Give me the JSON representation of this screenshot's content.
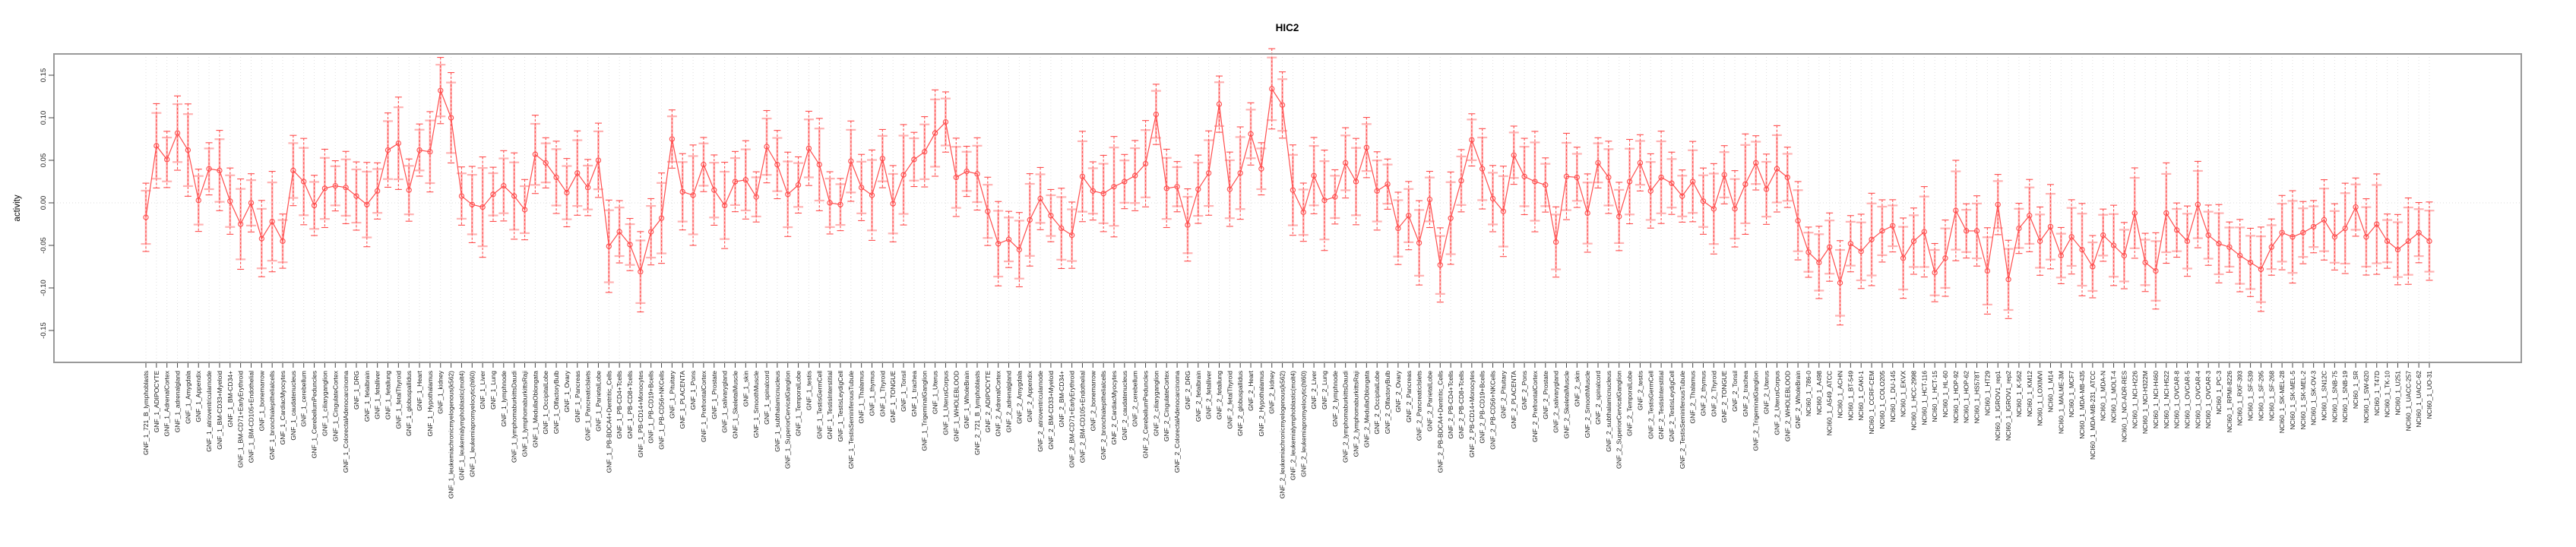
{
  "title": "HIC2",
  "y_axis": {
    "label": "activity",
    "tick_labels": [
      "0.15",
      "0.10",
      "0.05",
      "0.00",
      "-0.05",
      "-0.10",
      "-0.15"
    ],
    "tick_values": [
      0.15,
      0.1,
      0.05,
      0.0,
      -0.05,
      -0.1,
      -0.15
    ]
  },
  "colors": {
    "series_red": "#ff4d4d",
    "outer_band_pink": "#ffb3b3",
    "grid": "#e0e0e0",
    "zero_line": "#e4e4e4",
    "box": "#999999",
    "tick": "#444444",
    "label_text": "#1a1a1a"
  },
  "chart_data": {
    "type": "line",
    "subtype": "means-with-error-bars",
    "title": "HIC2",
    "xlabel": "",
    "ylabel": "activity",
    "ylim": [
      -0.19,
      0.175
    ],
    "yticks": [
      0.15,
      0.1,
      0.05,
      0.0,
      -0.05,
      -0.1,
      -0.15
    ],
    "grid": "vertical-dotted-per-category, dotted-zero-line",
    "legend_position": "none",
    "marker": "open-circle",
    "categories": [
      "GNF_1_721_B_lymphoblasts",
      "GNF_1_ADIPOCYTE",
      "GNF_1_AdrenalCortex",
      "GNF_1_adrenalgland",
      "GNF_1_Amygdala",
      "GNF_1_Appendix",
      "GNF_1_atrioventricularnode",
      "GNF_1_BM-CD33+Myeloid",
      "GNF_1_BM-CD34+",
      "GNF_1_BM-CD71+EarlyErythroid",
      "GNF_1_BM-CD105+Endothelial",
      "GNF_1_bonemarrow",
      "GNF_1_bronchialepithelialcells",
      "GNF_1_CardiacMyocytes",
      "GNF_1_caudatenucleus",
      "GNF_1_cerebellum",
      "GNF_1_CerebellumPeduncles",
      "GNF_1_ciliaryganglion",
      "GNF_1_CingulateCortex",
      "GNF_1_ColorectalAdenocarcinoma",
      "GNF_1_DRG",
      "GNF_1_fetalbrain",
      "GNF_1_fetalliver",
      "GNF_1_fetallung",
      "GNF_1_fetalThyroid",
      "GNF_1_globuspallidus",
      "GNF_1_Heart",
      "GNF_1_Hypothalamus",
      "GNF_1_kidney",
      "GNF_1_leukemiachronicmyelogenous(k562)",
      "GNF_1_leukemialymphoblastic(molt4)",
      "GNF_1_leukemiapromyelocytic(hl60)",
      "GNF_1_Liver",
      "GNF_1_Lung",
      "GNF_1_lymphnode",
      "GNF_1_lymphomaburkittsDaudi",
      "GNF_1_lymphomaburkittsRaji",
      "GNF_1_MedullaOblongata",
      "GNF_1_OccipitalLobe",
      "GNF_1_OlfactoryBulb",
      "GNF_1_Ovary",
      "GNF_1_Pancreas",
      "GNF_1_PancreaticIslets",
      "GNF_1_ParietalLobe",
      "GNF_1_PB-BDCA4+Dentritic_Cells",
      "GNF_1_PB-CD4+Tcells",
      "GNF_1_PB-CD8+Tcells",
      "GNF_1_PB-CD14+Monocytes",
      "GNF_1_PB-CD19+Bcells",
      "GNF_1_PB-CD56+NKCells",
      "GNF_1_Pituitary",
      "GNF_1_PLACENTA",
      "GNF_1_Pons",
      "GNF_1_PrefrontalCortex",
      "GNF_1_Prostate",
      "GNF_1_salivarygland",
      "GNF_1_SkeletalMuscle",
      "GNF_1_skin",
      "GNF_1_SmoothMuscle",
      "GNF_1_spinalcord",
      "GNF_1_subthalamicnucleus",
      "GNF_1_SuperiorCervicalGanglion",
      "GNF_1_TemporalLobe",
      "GNF_1_testis",
      "GNF_1_TestisGermCell",
      "GNF_1_TestisInterstitial",
      "GNF_1_TestisLeydigCell",
      "GNF_1_TestisSeminiferousTubule",
      "GNF_1_Thalamus",
      "GNF_1_thymus",
      "GNF_1_Thyroid",
      "GNF_1_TONGUE",
      "GNF_1_Tonsil",
      "GNF_1_trachea",
      "GNF_1_TrigeminalGanglion",
      "GNF_1_Uterus",
      "GNF_1_UterusCorpus",
      "GNF_1_WHOLEBLOOD",
      "GNF_1_WholeBrain",
      "GNF_2_721_B_lymphoblasts",
      "GNF_2_ADIPOCYTE",
      "GNF_2_AdrenalCortex",
      "GNF_2_adrenalgland",
      "GNF_2_Amygdala",
      "GNF_2_Appendix",
      "GNF_2_atrioventricularnode",
      "GNF_2_BM-CD33+Myeloid",
      "GNF_2_BM-CD34+",
      "GNF_2_BM-CD71+EarlyErythroid",
      "GNF_2_BM-CD105+Endothelial",
      "GNF_2_bonemarrow",
      "GNF_2_bronchialepithelialcells",
      "GNF_2_CardiacMyocytes",
      "GNF_2_caudatenucleus",
      "GNF_2_cerebellum",
      "GNF_2_CerebellumPeduncles",
      "GNF_2_ciliaryganglion",
      "GNF_2_CingulateCortex",
      "GNF_2_ColorectalAdenocarcinoma",
      "GNF_2_DRG",
      "GNF_2_fetalbrain",
      "GNF_2_fetalliver",
      "GNF_2_fetallung",
      "GNF_2_fetalThyroid",
      "GNF_2_globuspallidus",
      "GNF_2_Heart",
      "GNF_2_Hypothalamus",
      "GNF_2_kidney",
      "GNF_2_leukemiachronicmyelogenous(k562)",
      "GNF_2_leukemialymphoblastic(molt4)",
      "GNF_2_leukemiapromyelocytic(hl60)",
      "GNF_2_Liver",
      "GNF_2_Lung",
      "GNF_2_lymphnode",
      "GNF_2_lymphomaburkittsDaudi",
      "GNF_2_lymphomaburkittsRaji",
      "GNF_2_MedullaOblongata",
      "GNF_2_OccipitalLobe",
      "GNF_2_OlfactoryBulb",
      "GNF_2_Ovary",
      "GNF_2_Pancreas",
      "GNF_2_PancreaticIslets",
      "GNF_2_ParietalLobe",
      "GNF_2_PB-BDCA4+Dentritic_Cells",
      "GNF_2_PB-CD4+Tcells",
      "GNF_2_PB-CD8+Tcells",
      "GNF_2_PB-CD14+Monocytes",
      "GNF_2_PB-CD19+Bcells",
      "GNF_2_PB-CD56+NKCells",
      "GNF_2_Pituitary",
      "GNF_2_PLACENTA",
      "GNF_2_Pons",
      "GNF_2_PrefrontalCortex",
      "GNF_2_Prostate",
      "GNF_2_salivarygland",
      "GNF_2_SkeletalMuscle",
      "GNF_2_skin",
      "GNF_2_SmoothMuscle",
      "GNF_2_spinalcord",
      "GNF_2_subthalamicnucleus",
      "GNF_2_SuperiorCervicalGanglion",
      "GNF_2_TemporalLobe",
      "GNF_2_testis",
      "GNF_2_TestisGermCell",
      "GNF_2_TestisInterstitial",
      "GNF_2_TestisLeydigCell",
      "GNF_2_TestisSeminiferousTubule",
      "GNF_2_Thalamus",
      "GNF_2_thymus",
      "GNF_2_Thyroid",
      "GNF_2_TONGUE",
      "GNF_2_Tonsil",
      "GNF_2_trachea",
      "GNF_2_TrigeminalGanglion",
      "GNF_2_Uterus",
      "GNF_2_UterusCorpus",
      "GNF_2_WHOLEBLOOD",
      "GNF_2_WholeBrain",
      "NCI60_1_786-0",
      "NCI60_1_A498",
      "NCI60_1_A549_ATCC",
      "NCI60_1_ACHN",
      "NCI60_1_BT-549",
      "NCI60_1_CAKI-1",
      "NCI60_1_CCRF-CEM",
      "NCI60_1_COLO205",
      "NCI60_1_DU-145",
      "NCI60_1_EKVX",
      "NCI60_1_HCC-2998",
      "NCI60_1_HCT-116",
      "NCI60_1_HCT-15",
      "NCI60_1_HL-60",
      "NCI60_1_HOP-92",
      "NCI60_1_HOP-62",
      "NCI60_1_HS578T",
      "NCI60_1_HT29",
      "NCI60_1_IGROV1_rep1",
      "NCI60_1_IGROV1_rep2",
      "NCI60_1_K-562",
      "NCI60_1_KM12",
      "NCI60_1_LOXIMVI",
      "NCI60_1_M14",
      "NCI60_1_MALME-3M",
      "NCI60_1_MCF7",
      "NCI60_1_MDA-MB-435",
      "NCI60_1_MDA-MB-231_ATCC",
      "NCI60_1_MDA-N",
      "NCI60_1_MOLT-4",
      "NCI60_1_NCI-ADR-RES",
      "NCI60_1_NCI-H226",
      "NCI60_1_NCI-H322M",
      "NCI60_1_NCI-H460",
      "NCI60_1_NCI-H522",
      "NCI60_1_OVCAR-8",
      "NCI60_1_OVCAR-5",
      "NCI60_1_OVCAR-4",
      "NCI60_1_OVCAR-3",
      "NCI60_1_PC-3",
      "NCI60_1_RPMI-8226",
      "NCI60_1_RXF-393",
      "NCI60_1_SF-539",
      "NCI60_1_SF-295",
      "NCI60_1_SF-268",
      "NCI60_1_SK-MEL-28",
      "NCI60_1_SK-MEL-5",
      "NCI60_1_SK-MEL-2",
      "NCI60_1_SK-OV-3",
      "NCI60_1_SN12C",
      "NCI60_1_SNB-75",
      "NCI60_1_SNB-19",
      "NCI60_1_SR",
      "NCI60_1_SW-620",
      "NCI60_1_T47D",
      "NCI60_1_TK-10",
      "NCI60_1_U251",
      "NCI60_1_UACC-257",
      "NCI60_1_UACC-62",
      "NCI60_1_UO-31"
    ],
    "values": [
      -0.017,
      0.067,
      0.051,
      0.082,
      0.062,
      0.003,
      0.04,
      0.038,
      0.002,
      -0.025,
      0.0,
      -0.042,
      -0.022,
      -0.045,
      0.038,
      0.025,
      -0.003,
      0.017,
      0.02,
      0.018,
      0.008,
      -0.002,
      0.014,
      0.062,
      0.07,
      0.015,
      0.062,
      0.06,
      0.132,
      0.1,
      0.008,
      -0.002,
      -0.005,
      0.01,
      0.02,
      0.008,
      -0.008,
      0.057,
      0.047,
      0.03,
      0.012,
      0.035,
      0.018,
      0.05,
      -0.051,
      -0.034,
      -0.049,
      -0.081,
      -0.034,
      -0.018,
      0.075,
      0.013,
      0.009,
      0.045,
      0.015,
      -0.003,
      0.025,
      0.027,
      0.007,
      0.066,
      0.045,
      0.01,
      0.021,
      0.064,
      0.045,
      0.0,
      -0.002,
      0.049,
      0.018,
      0.009,
      0.052,
      -0.001,
      0.033,
      0.051,
      0.06,
      0.082,
      0.095,
      0.03,
      0.037,
      0.034,
      -0.01,
      -0.048,
      -0.043,
      -0.055,
      -0.02,
      0.005,
      -0.015,
      -0.03,
      -0.038,
      0.031,
      0.014,
      0.011,
      0.019,
      0.025,
      0.032,
      0.046,
      0.104,
      0.017,
      0.019,
      -0.026,
      0.016,
      0.035,
      0.116,
      0.016,
      0.035,
      0.081,
      0.04,
      0.134,
      0.115,
      0.015,
      -0.011,
      0.032,
      0.003,
      0.007,
      0.047,
      0.025,
      0.065,
      0.014,
      0.022,
      -0.03,
      -0.015,
      -0.047,
      0.004,
      -0.073,
      -0.018,
      0.026,
      0.074,
      0.04,
      0.005,
      -0.01,
      0.056,
      0.031,
      0.025,
      0.021,
      -0.046,
      0.031,
      0.03,
      -0.012,
      0.047,
      0.03,
      -0.016,
      0.025,
      0.047,
      0.014,
      0.03,
      0.023,
      0.008,
      0.025,
      0.002,
      -0.007,
      0.033,
      -0.007,
      0.022,
      0.047,
      0.016,
      0.04,
      0.03,
      -0.021,
      -0.058,
      -0.07,
      -0.052,
      -0.094,
      -0.048,
      -0.057,
      -0.043,
      -0.033,
      -0.027,
      -0.065,
      -0.045,
      -0.034,
      -0.082,
      -0.065,
      -0.009,
      -0.033,
      -0.033,
      -0.08,
      -0.002,
      -0.09,
      -0.03,
      -0.015,
      -0.045,
      -0.028,
      -0.062,
      -0.04,
      -0.055,
      -0.075,
      -0.038,
      -0.05,
      -0.062,
      -0.012,
      -0.07,
      -0.08,
      -0.012,
      -0.032,
      -0.045,
      -0.002,
      -0.038,
      -0.048,
      -0.052,
      -0.062,
      -0.07,
      -0.078,
      -0.052,
      -0.035,
      -0.04,
      -0.035,
      -0.028,
      -0.02,
      -0.04,
      -0.03,
      -0.005,
      -0.04,
      -0.025,
      -0.045,
      -0.055,
      -0.045,
      -0.035,
      -0.045
    ],
    "err_half_cycle": [
      0.034,
      0.042,
      0.028,
      0.037,
      0.046,
      0.031,
      0.026,
      0.04,
      0.033,
      0.045,
      0.029,
      0.038,
      0.05,
      0.027,
      0.035,
      0.043,
      0.03,
      0.039,
      0.025,
      0.036
    ]
  }
}
